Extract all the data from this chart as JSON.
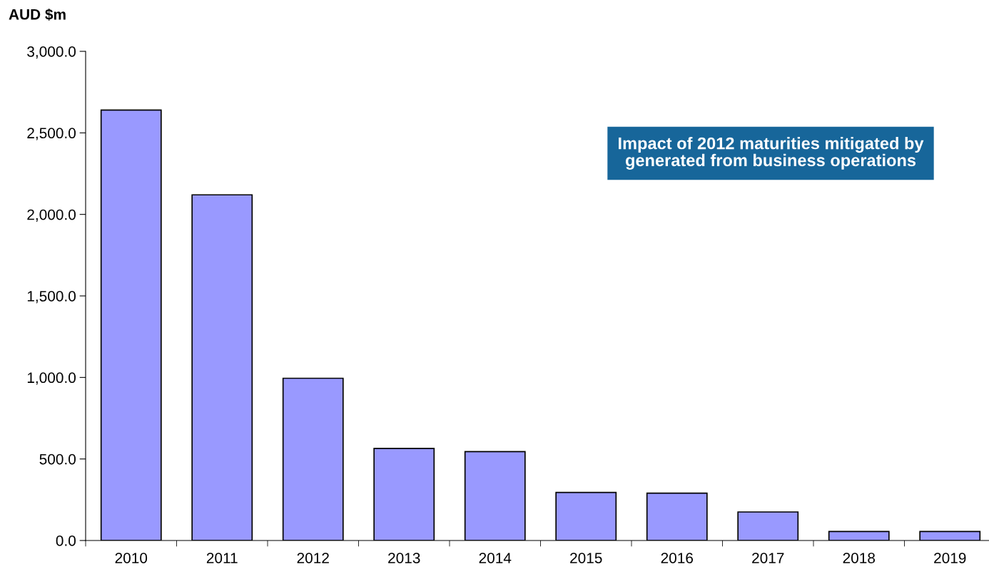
{
  "chart_data": {
    "type": "bar",
    "ylabel": "AUD $m",
    "categories": [
      "2010",
      "2011",
      "2012",
      "2013",
      "2014",
      "2015",
      "2016",
      "2017",
      "2018",
      "2019"
    ],
    "values": [
      2640,
      2120,
      995,
      565,
      545,
      295,
      290,
      175,
      55,
      55
    ],
    "color": "#9999ff",
    "ylim": [
      0,
      3000
    ],
    "yticks": [
      {
        "value": 0,
        "label": "0.0"
      },
      {
        "value": 500,
        "label": "500.0"
      },
      {
        "value": 1000,
        "label": "1,000.0"
      },
      {
        "value": 1500,
        "label": "1,500.0"
      },
      {
        "value": 2000,
        "label": "2,000.0"
      },
      {
        "value": 2500,
        "label": "2,500.0"
      },
      {
        "value": 3000,
        "label": "3,000.0"
      }
    ],
    "annotations": [
      "Impact of 2012 maturities mitigated by\ngenerated from business operations"
    ],
    "grid": false,
    "legend": false
  }
}
